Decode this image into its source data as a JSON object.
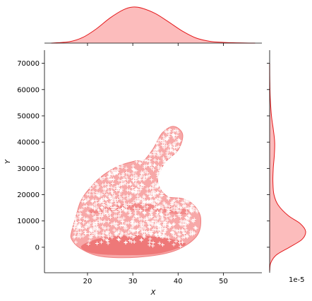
{
  "chart_data": {
    "type": "scatter",
    "title": "",
    "xlabel": "X",
    "ylabel": "Y",
    "xlim": [
      10.5,
      58.5
    ],
    "ylim": [
      -9700,
      75000
    ],
    "x_ticks": [
      20,
      30,
      40,
      50
    ],
    "y_ticks": [
      0,
      10000,
      20000,
      30000,
      40000,
      50000,
      60000,
      70000
    ],
    "x_tick_labels": [
      "20",
      "30",
      "40",
      "50"
    ],
    "y_tick_labels": [
      "0",
      "10000",
      "20000",
      "30000",
      "40000",
      "50000",
      "60000",
      "70000"
    ],
    "marker": "+",
    "marker_color": "#ffffff",
    "accent_color": "#e41a1c",
    "fill_color": "#f08080",
    "grid": false,
    "side_axis_multiplier": "1e-5",
    "kde_region": [
      {
        "x": 16.5,
        "y": 6000
      },
      {
        "x": 17.5,
        "y": 12000
      },
      {
        "x": 18.5,
        "y": 17500
      },
      {
        "x": 20.5,
        "y": 22500
      },
      {
        "x": 23.5,
        "y": 27500
      },
      {
        "x": 27.0,
        "y": 31000
      },
      {
        "x": 30.5,
        "y": 32800
      },
      {
        "x": 32.5,
        "y": 33200
      },
      {
        "x": 34.5,
        "y": 37500
      },
      {
        "x": 36.5,
        "y": 43500
      },
      {
        "x": 39.0,
        "y": 46000
      },
      {
        "x": 41.0,
        "y": 43000
      },
      {
        "x": 40.0,
        "y": 37000
      },
      {
        "x": 37.0,
        "y": 32000
      },
      {
        "x": 35.5,
        "y": 25000
      },
      {
        "x": 37.5,
        "y": 19500
      },
      {
        "x": 41.0,
        "y": 18500
      },
      {
        "x": 43.5,
        "y": 16000
      },
      {
        "x": 45.0,
        "y": 11000
      },
      {
        "x": 44.0,
        "y": 4000
      },
      {
        "x": 39.0,
        "y": -1500
      },
      {
        "x": 31.0,
        "y": -3800
      },
      {
        "x": 23.0,
        "y": -3500
      },
      {
        "x": 18.5,
        "y": -500
      },
      {
        "x": 16.5,
        "y": 3000
      }
    ],
    "kde_dense_region": [
      {
        "x": 19.0,
        "y": 1000
      },
      {
        "x": 23.0,
        "y": 3500
      },
      {
        "x": 29.0,
        "y": 4500
      },
      {
        "x": 35.0,
        "y": 4000
      },
      {
        "x": 40.0,
        "y": 2500
      },
      {
        "x": 41.5,
        "y": 800
      },
      {
        "x": 36.0,
        "y": -2300
      },
      {
        "x": 29.0,
        "y": -3000
      },
      {
        "x": 22.0,
        "y": -2500
      },
      {
        "x": 19.0,
        "y": -800
      }
    ],
    "kde_band": [
      {
        "x": 21.0,
        "y": 14500
      },
      {
        "x": 28.0,
        "y": 16500
      },
      {
        "x": 35.0,
        "y": 16200
      },
      {
        "x": 42.0,
        "y": 14500
      },
      {
        "x": 41.0,
        "y": 12500
      },
      {
        "x": 34.0,
        "y": 13800
      },
      {
        "x": 27.0,
        "y": 14000
      },
      {
        "x": 21.0,
        "y": 12800
      }
    ],
    "x_marginal_density": [
      {
        "x": 12,
        "y": 0.0
      },
      {
        "x": 16,
        "y": 0.04
      },
      {
        "x": 19,
        "y": 0.16
      },
      {
        "x": 22,
        "y": 0.4
      },
      {
        "x": 25,
        "y": 0.7
      },
      {
        "x": 28,
        "y": 0.93
      },
      {
        "x": 30,
        "y": 1.0
      },
      {
        "x": 32,
        "y": 0.97
      },
      {
        "x": 35,
        "y": 0.82
      },
      {
        "x": 38,
        "y": 0.58
      },
      {
        "x": 41,
        "y": 0.33
      },
      {
        "x": 44,
        "y": 0.14
      },
      {
        "x": 47,
        "y": 0.05
      },
      {
        "x": 50,
        "y": 0.02
      },
      {
        "x": 54,
        "y": 0.005
      },
      {
        "x": 57,
        "y": 0.0
      }
    ],
    "y_marginal_density": [
      {
        "y": -9000,
        "v": 0.0
      },
      {
        "y": -6000,
        "v": 0.03
      },
      {
        "y": -3000,
        "v": 0.18
      },
      {
        "y": 0,
        "v": 0.55
      },
      {
        "y": 3000,
        "v": 0.9
      },
      {
        "y": 6000,
        "v": 1.0
      },
      {
        "y": 9000,
        "v": 0.85
      },
      {
        "y": 12000,
        "v": 0.52
      },
      {
        "y": 16000,
        "v": 0.24
      },
      {
        "y": 20000,
        "v": 0.12
      },
      {
        "y": 25000,
        "v": 0.09
      },
      {
        "y": 30000,
        "v": 0.1
      },
      {
        "y": 35000,
        "v": 0.13
      },
      {
        "y": 40000,
        "v": 0.14
      },
      {
        "y": 45000,
        "v": 0.1
      },
      {
        "y": 50000,
        "v": 0.05
      },
      {
        "y": 56000,
        "v": 0.02
      },
      {
        "y": 62000,
        "v": 0.005
      },
      {
        "y": 70000,
        "v": 0.0
      }
    ]
  }
}
